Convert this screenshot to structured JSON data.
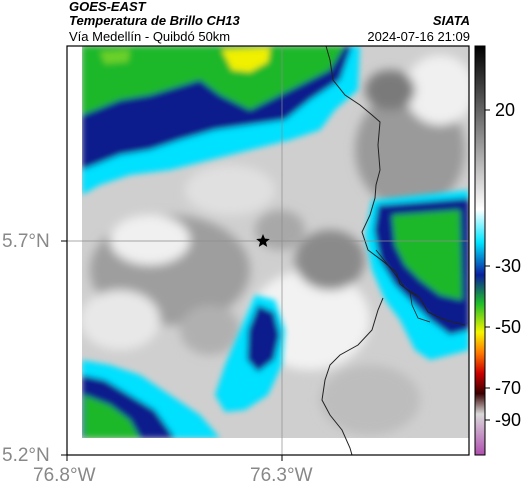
{
  "header": {
    "satellite": "GOES-EAST",
    "product": "Temperatura de Brillo CH13",
    "location": "Vía Medellín - Quibdó 50km",
    "agency": "SIATA",
    "datetime": "2024-07-16 21:09"
  },
  "axes": {
    "lat_labels": [
      "5.7°N",
      "5.2°N"
    ],
    "lon_labels": [
      "76.8°W",
      "76.3°W"
    ]
  },
  "colorbar": {
    "labels": [
      "20",
      "-30",
      "-50",
      "-70",
      "-90"
    ],
    "unit": "",
    "scale_colors": [
      "#000000",
      "#ffffff",
      "#00e5ff",
      "#0b1f9c",
      "#1fbf2a",
      "#f5f500",
      "#ff7a00",
      "#cc0000",
      "#3a0000",
      "#d9d9d9",
      "#b04fb0"
    ]
  },
  "map": {
    "marker": "star",
    "colors": {
      "cloud_gray_dark": "#6e6e6e",
      "cloud_gray_light": "#f2f2f2",
      "cyan": "#00e0ff",
      "blue": "#0a1e8c",
      "green": "#1fb82a",
      "yellow": "#f0f000"
    }
  }
}
